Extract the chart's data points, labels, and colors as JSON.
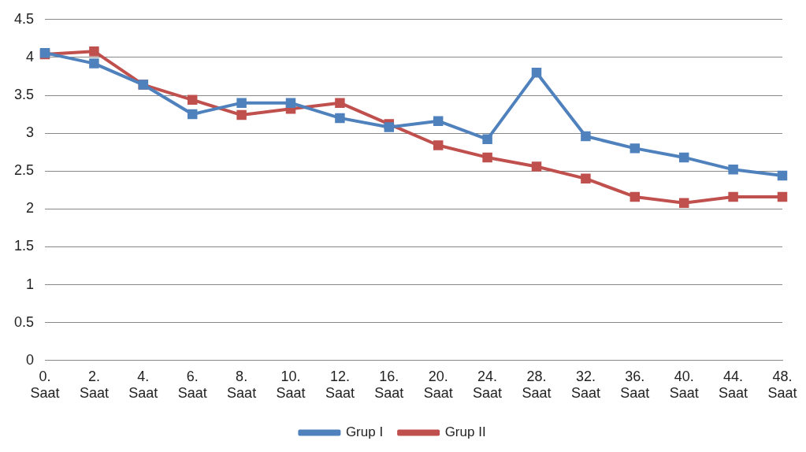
{
  "chart_data": {
    "type": "line",
    "categories": [
      "0. Saat",
      "2. Saat",
      "4. Saat",
      "6. Saat",
      "8. Saat",
      "10. Saat",
      "12. Saat",
      "16. Saat",
      "20. Saat",
      "24. Saat",
      "28. Saat",
      "32. Saat",
      "36. Saat",
      "40. Saat",
      "44. Saat",
      "48. Saat"
    ],
    "series": [
      {
        "name": "Grup I",
        "color": "#4f81bd",
        "values": [
          4.06,
          3.92,
          3.64,
          3.25,
          3.4,
          3.4,
          3.2,
          3.08,
          3.16,
          2.92,
          3.8,
          2.96,
          2.8,
          2.68,
          2.52,
          2.44
        ]
      },
      {
        "name": "Grup II",
        "color": "#c0504d",
        "values": [
          4.04,
          4.08,
          3.64,
          3.44,
          3.24,
          3.32,
          3.4,
          3.12,
          2.84,
          2.68,
          2.56,
          2.4,
          2.16,
          2.08,
          2.16,
          2.16
        ]
      }
    ],
    "ylim": [
      0,
      4.5
    ],
    "yticks": [
      0,
      0.5,
      1,
      1.5,
      2,
      2.5,
      3,
      3.5,
      4,
      4.5
    ],
    "grid": "y",
    "legend": "bottom",
    "marker": "square",
    "line_style": "solid"
  }
}
